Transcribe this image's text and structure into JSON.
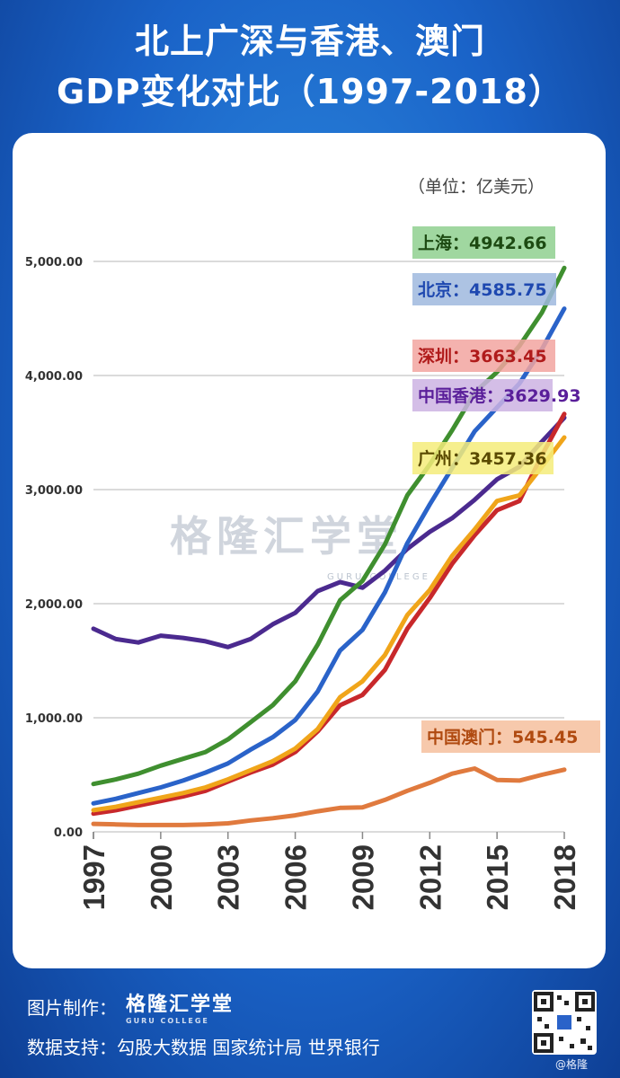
{
  "title": {
    "line1": "北上广深与香港、澳门",
    "line2": "GDP变化对比（1997-2018）"
  },
  "unit_label": "（单位：亿美元）",
  "watermark": {
    "main": "格隆汇学堂",
    "sub": "GURU COLLEGE"
  },
  "footer": {
    "made_by_label": "图片制作：",
    "brand": "格隆汇学堂",
    "brand_sub": "GURU COLLEGE",
    "data_source": "数据支持：勾股大数据  国家统计局  世界银行",
    "weibo_handle": "@格隆"
  },
  "chart_data": {
    "type": "line",
    "x": [
      1997,
      1998,
      1999,
      2000,
      2001,
      2002,
      2003,
      2004,
      2005,
      2006,
      2007,
      2008,
      2009,
      2010,
      2011,
      2012,
      2013,
      2014,
      2015,
      2016,
      2017,
      2018
    ],
    "xticks": [
      "1997",
      "2000",
      "2003",
      "2006",
      "2009",
      "2012",
      "2015",
      "2018"
    ],
    "ylim": [
      0,
      5000
    ],
    "yticks": [
      "0.00",
      "1,000.00",
      "2,000.00",
      "3,000.00",
      "4,000.00",
      "5,000.00"
    ],
    "grid": "horizontal",
    "series": [
      {
        "name": "中国香港",
        "color": "#4b2a8f",
        "label_bg": "#cdb3e3",
        "label_color": "#5a1f9a",
        "end_label": "中国香港：3629.93",
        "values": [
          1780,
          1690,
          1660,
          1720,
          1700,
          1670,
          1620,
          1690,
          1820,
          1920,
          2110,
          2190,
          2140,
          2290,
          2480,
          2630,
          2750,
          2910,
          3090,
          3200,
          3420,
          3630
        ]
      },
      {
        "name": "上海",
        "color": "#3f8f2f",
        "label_bg": "#8fd08f",
        "label_color": "#1d4a12",
        "end_label": "上海：4942.66",
        "values": [
          420,
          460,
          510,
          580,
          640,
          700,
          810,
          960,
          1110,
          1320,
          1640,
          2030,
          2200,
          2520,
          2950,
          3220,
          3520,
          3850,
          4030,
          4260,
          4550,
          4943
        ]
      },
      {
        "name": "北京",
        "color": "#2a63c9",
        "label_bg": "#9fb8de",
        "label_color": "#1e48b0",
        "end_label": "北京：4585.75",
        "values": [
          250,
          290,
          340,
          390,
          450,
          520,
          600,
          720,
          830,
          980,
          1230,
          1590,
          1770,
          2100,
          2530,
          2870,
          3190,
          3510,
          3720,
          3930,
          4230,
          4586
        ]
      },
      {
        "name": "深圳",
        "color": "#c8282b",
        "label_bg": "#f2a5a0",
        "label_color": "#b01b1b",
        "end_label": "深圳：3663.45",
        "values": [
          160,
          190,
          230,
          270,
          310,
          360,
          440,
          520,
          590,
          700,
          880,
          1110,
          1200,
          1420,
          1780,
          2050,
          2350,
          2600,
          2820,
          2900,
          3300,
          3663
        ]
      },
      {
        "name": "广州",
        "color": "#f0a51a",
        "label_bg": "#f5ec7a",
        "label_color": "#5a4a00",
        "end_label": "广州：3457.36",
        "values": [
          190,
          220,
          260,
          300,
          340,
          390,
          460,
          540,
          620,
          730,
          900,
          1180,
          1320,
          1550,
          1900,
          2120,
          2420,
          2650,
          2900,
          2950,
          3200,
          3457
        ]
      },
      {
        "name": "中国澳门",
        "color": "#e07a3e",
        "label_bg": "#f6c09e",
        "label_color": "#b04a10",
        "end_label": "中国澳门：545.45",
        "values": [
          70,
          65,
          60,
          60,
          60,
          65,
          75,
          100,
          120,
          145,
          180,
          210,
          215,
          280,
          360,
          430,
          510,
          555,
          455,
          450,
          500,
          545
        ]
      }
    ]
  }
}
